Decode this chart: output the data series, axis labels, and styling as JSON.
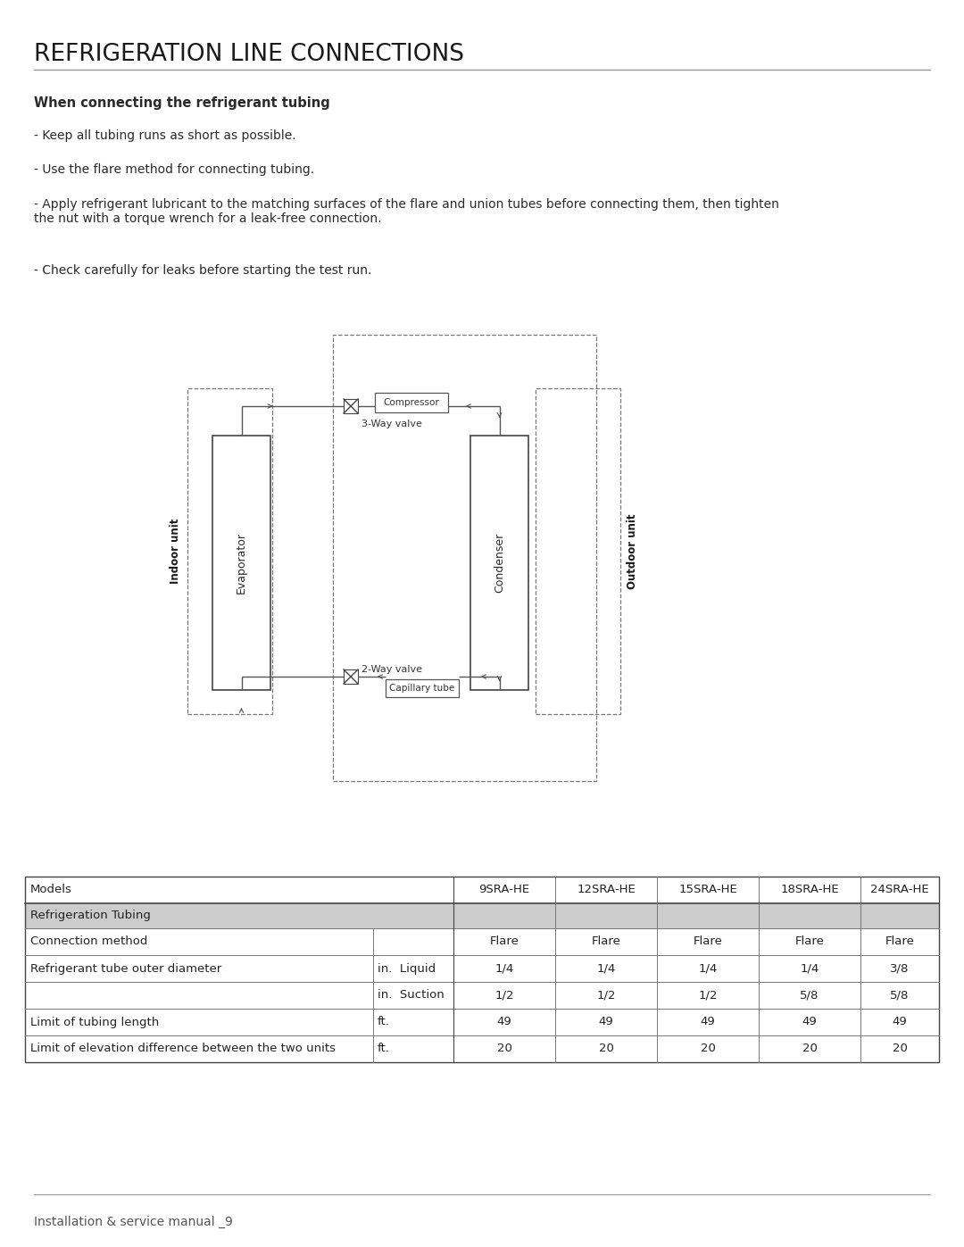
{
  "title": "REFRIGERATION LINE CONNECTIONS",
  "subtitle": "When connecting the refrigerant tubing",
  "bullet1": "- Keep all tubing runs as short as possible.",
  "bullet2": "- Use the flare method for connecting tubing.",
  "bullet3": "- Apply refrigerant lubricant to the matching surfaces of the flare and union tubes before connecting them, then tighten\nthe nut with a torque wrench for a leak-free connection.",
  "bullet4": "- Check carefully for leaks before starting the test run.",
  "footer_line": "Installation & service manual _9",
  "bg_color": "#ffffff",
  "title_color": "#1a1a1a",
  "text_color": "#2a2a2a"
}
